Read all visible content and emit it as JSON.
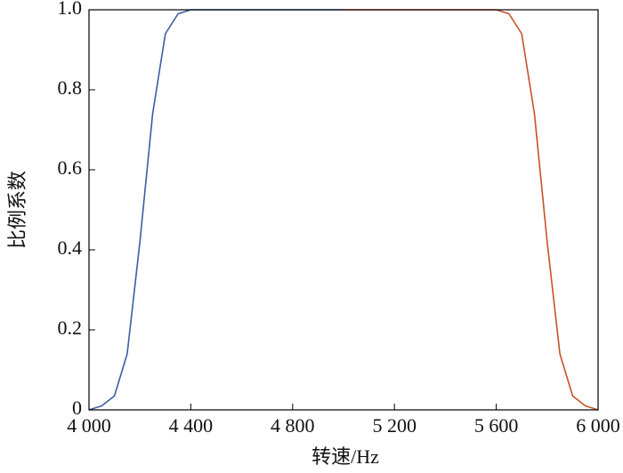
{
  "chart_data": {
    "type": "line",
    "xlabel": "转速/Hz",
    "ylabel": "比例系数",
    "xlim": [
      4000,
      6000
    ],
    "ylim": [
      0,
      1
    ],
    "xticks": [
      {
        "value": 4000,
        "label": "4 000"
      },
      {
        "value": 4400,
        "label": "4 400"
      },
      {
        "value": 4800,
        "label": "4 800"
      },
      {
        "value": 5200,
        "label": "5 200"
      },
      {
        "value": 5600,
        "label": "5 600"
      },
      {
        "value": 6000,
        "label": "6 000"
      }
    ],
    "yticks": [
      0,
      0.2,
      0.4,
      0.6,
      0.8,
      {
        "value": 1,
        "label": "1.0"
      }
    ],
    "series": [
      {
        "color": "#3a5fa0",
        "x": [
          4000,
          4050,
          4100,
          4150,
          4200,
          4250,
          4300,
          4350,
          4400,
          4450,
          4600,
          4800,
          5000
        ],
        "values": [
          0,
          0.01,
          0.035,
          0.14,
          0.42,
          0.74,
          0.94,
          0.99,
          1,
          1,
          1,
          1,
          1
        ]
      },
      {
        "color": "#c8502a",
        "x": [
          5000,
          5200,
          5400,
          5550,
          5600,
          5650,
          5700,
          5750,
          5800,
          5850,
          5900,
          5950,
          6000
        ],
        "values": [
          1,
          1,
          1,
          1,
          1,
          0.99,
          0.94,
          0.74,
          0.42,
          0.14,
          0.035,
          0.01,
          0
        ]
      }
    ]
  }
}
